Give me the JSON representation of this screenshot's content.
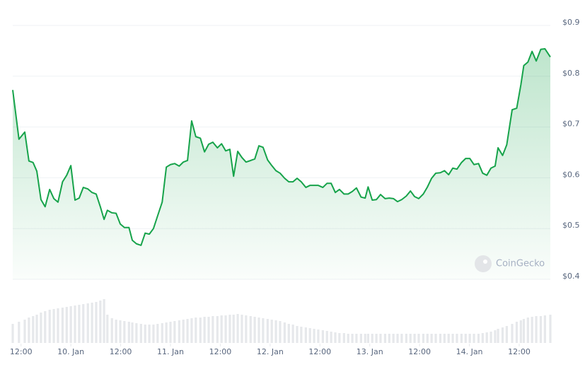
{
  "chart_data": {
    "type": "line",
    "watermark": "CoinGecko",
    "grid": true,
    "x": [
      10.0,
      11.5,
      12.9,
      13.9,
      14.9,
      15.8,
      16.8,
      17.8,
      18.9,
      19.9,
      20.9,
      22.0,
      23.0,
      24.0,
      25.0,
      26.0,
      27.0,
      28.1,
      29.1,
      30.1,
      31.1,
      32.0,
      32.8,
      33.9,
      34.9,
      35.9,
      36.9,
      38.0,
      38.8,
      39.8,
      40.9,
      41.9,
      42.9,
      43.9,
      44.9,
      46.0,
      47.0,
      48.0,
      49.0,
      50.1,
      51.1,
      52.1,
      53.1,
      54.1,
      55.2,
      56.2,
      57.2,
      58.2,
      59.3,
      60.3,
      61.3,
      62.3,
      63.2,
      64.2,
      65.2,
      66.2,
      67.3,
      68.3,
      69.3,
      70.3,
      71.4,
      72.4,
      73.4,
      74.4,
      75.5,
      76.5,
      77.5,
      78.5,
      79.5,
      80.6,
      81.6,
      82.6,
      83.6,
      84.7,
      85.7,
      86.7,
      87.7,
      88.7,
      89.8,
      90.8,
      91.8,
      92.8,
      93.9,
      94.9,
      95.6,
      96.6,
      97.6,
      98.6,
      99.7,
      100.7,
      101.7,
      102.7,
      103.7,
      104.8,
      105.8,
      106.8,
      107.8,
      108.9,
      109.9,
      110.9,
      111.9,
      113.0,
      114.0,
      115.0,
      116.0,
      117.0,
      118.1,
      119.1,
      120.1,
      121.1,
      122.2,
      123.2,
      124.2,
      125.2,
      126.2,
      126.9,
      128.0,
      129.0,
      130.3,
      131.4,
      132.4,
      133.1,
      134.1,
      135.1,
      136.1,
      137.2,
      138.2,
      139.5
    ],
    "series": [
      {
        "color": "#16a34a",
        "values": [
          0.773,
          0.676,
          0.69,
          0.633,
          0.63,
          0.613,
          0.557,
          0.543,
          0.577,
          0.559,
          0.552,
          0.592,
          0.605,
          0.624,
          0.556,
          0.56,
          0.581,
          0.578,
          0.571,
          0.568,
          0.543,
          0.518,
          0.536,
          0.531,
          0.53,
          0.509,
          0.502,
          0.502,
          0.477,
          0.47,
          0.467,
          0.491,
          0.489,
          0.5,
          0.525,
          0.552,
          0.621,
          0.626,
          0.628,
          0.623,
          0.631,
          0.634,
          0.712,
          0.681,
          0.678,
          0.651,
          0.666,
          0.67,
          0.659,
          0.667,
          0.653,
          0.656,
          0.603,
          0.652,
          0.64,
          0.631,
          0.634,
          0.637,
          0.663,
          0.66,
          0.635,
          0.624,
          0.614,
          0.609,
          0.599,
          0.592,
          0.592,
          0.599,
          0.592,
          0.581,
          0.585,
          0.585,
          0.585,
          0.581,
          0.589,
          0.589,
          0.571,
          0.577,
          0.568,
          0.568,
          0.573,
          0.58,
          0.562,
          0.56,
          0.582,
          0.556,
          0.557,
          0.567,
          0.559,
          0.56,
          0.559,
          0.553,
          0.557,
          0.564,
          0.574,
          0.563,
          0.559,
          0.568,
          0.582,
          0.599,
          0.609,
          0.61,
          0.614,
          0.606,
          0.619,
          0.617,
          0.63,
          0.638,
          0.638,
          0.626,
          0.628,
          0.609,
          0.605,
          0.619,
          0.623,
          0.659,
          0.644,
          0.665,
          0.734,
          0.737,
          0.783,
          0.821,
          0.828,
          0.849,
          0.83,
          0.853,
          0.854,
          0.838
        ]
      },
      {
        "color": "#e6e8eb",
        "type": "bar",
        "axis": "y2",
        "values": [
          27,
          30,
          33,
          36,
          38,
          40,
          43,
          45,
          47,
          48,
          49,
          50,
          51,
          52,
          53,
          54,
          55,
          56,
          57,
          58,
          60,
          62,
          40,
          35,
          33,
          32,
          31,
          30,
          29,
          28,
          27,
          26,
          26,
          26,
          27,
          28,
          29,
          30,
          31,
          32,
          33,
          34,
          35,
          36,
          36,
          37,
          37,
          38,
          38,
          39,
          39,
          40,
          40,
          41,
          40,
          39,
          38,
          37,
          36,
          35,
          34,
          33,
          32,
          31,
          29,
          27,
          26,
          24,
          23,
          22,
          21,
          20,
          19,
          18,
          17,
          16,
          15,
          14,
          14,
          13,
          13,
          13,
          13,
          13,
          13,
          13,
          13,
          13,
          13,
          13,
          13,
          13,
          13,
          13,
          13,
          13,
          13,
          13,
          13,
          13,
          13,
          13,
          13,
          13,
          13,
          13,
          13,
          13,
          13,
          13,
          13,
          14,
          15,
          16,
          18,
          20,
          22,
          24,
          27,
          30,
          32,
          34,
          36,
          37,
          38,
          38,
          39,
          40
        ]
      }
    ],
    "xlim": [
      10,
      139.5
    ],
    "xticks": [
      {
        "value": 12,
        "label": "12:00"
      },
      {
        "value": 24,
        "label": "10. Jan"
      },
      {
        "value": 36,
        "label": "12:00"
      },
      {
        "value": 48,
        "label": "11. Jan"
      },
      {
        "value": 60,
        "label": "12:00"
      },
      {
        "value": 72,
        "label": "12. Jan"
      },
      {
        "value": 84,
        "label": "12:00"
      },
      {
        "value": 96,
        "label": "13. Jan"
      },
      {
        "value": 108,
        "label": "12:00"
      },
      {
        "value": 120,
        "label": "14. Jan"
      },
      {
        "value": 132,
        "label": "12:00"
      }
    ],
    "ylim": [
      0.4,
      0.9
    ],
    "yticks": [
      {
        "value": 0.4,
        "label": "$0.4"
      },
      {
        "value": 0.5,
        "label": "$0.5"
      },
      {
        "value": 0.6,
        "label": "$0.6"
      },
      {
        "value": 0.7,
        "label": "$0.7"
      },
      {
        "value": 0.8,
        "label": "$0.8"
      },
      {
        "value": 0.9,
        "label": "$0.9"
      }
    ],
    "y2lim": [
      0,
      90
    ]
  }
}
